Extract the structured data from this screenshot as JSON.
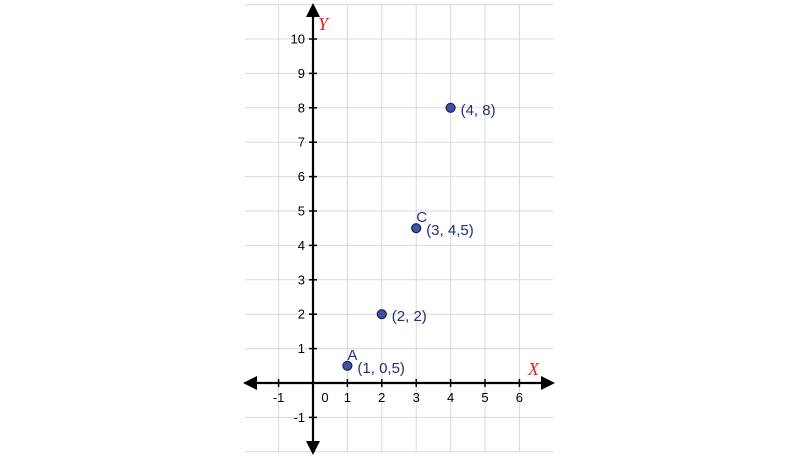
{
  "chart_data": {
    "type": "scatter",
    "xlabel": "X",
    "ylabel": "Y",
    "xlim": [
      -2,
      7
    ],
    "ylim": [
      -2,
      11
    ],
    "x_ticks": [
      -1,
      0,
      1,
      2,
      3,
      4,
      5,
      6
    ],
    "y_ticks": [
      -1,
      1,
      2,
      3,
      4,
      5,
      6,
      7,
      8,
      9,
      10
    ],
    "x_tick_labels": [
      "-1",
      "0",
      "1",
      "2",
      "3",
      "4",
      "5",
      "6"
    ],
    "y_tick_labels": [
      "-1",
      "1",
      "2",
      "3",
      "4",
      "5",
      "6",
      "7",
      "8",
      "9",
      "10"
    ],
    "grid": true,
    "points": [
      {
        "x": 1,
        "y": 0.5,
        "name": "A",
        "label": "(1, 0,5)"
      },
      {
        "x": 2,
        "y": 2,
        "name": "",
        "label": "(2, 2)"
      },
      {
        "x": 3,
        "y": 4.5,
        "name": "C",
        "label": "(3, 4,5)"
      },
      {
        "x": 4,
        "y": 8,
        "name": "",
        "label": "(4, 8)"
      }
    ],
    "colors": {
      "point_fill": "#3f51a8",
      "point_stroke": "#1a1f4a",
      "label": "#1f2f7a",
      "axis": "#000000",
      "grid": "#d9d9d9",
      "axis_name": "#e0201c"
    }
  }
}
